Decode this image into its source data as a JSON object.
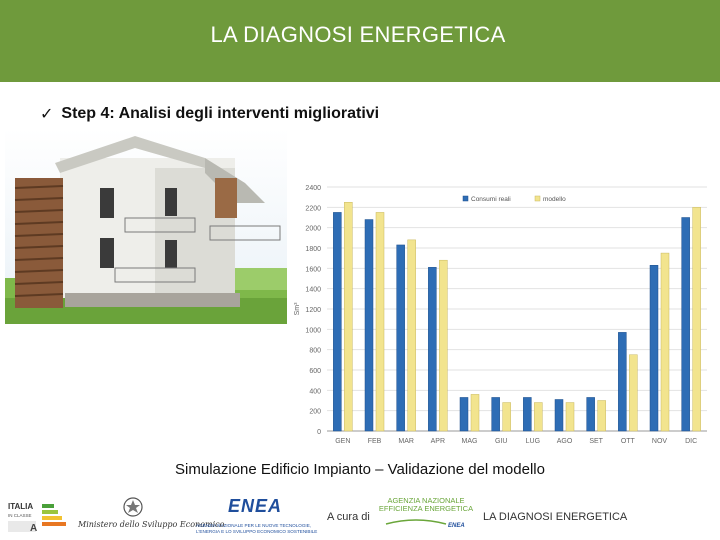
{
  "header": {
    "title": "LA DIAGNOSI ENERGETICA"
  },
  "step": {
    "label": "Step 4: Analisi degli interventi migliorativi"
  },
  "caption": "Simulazione Edificio Impianto – Validazione del modello",
  "footer": {
    "italia_logo": [
      "ITALIA",
      "IN CLASSE",
      "A"
    ],
    "ministero": "Ministero dello Sviluppo Economico",
    "enea": {
      "word": "ENEA",
      "line1": "AGENZIA NAZIONALE PER LE NUOVE TECNOLOGIE,",
      "line2": "L'ENERGIA E LO SVILUPPO ECONOMICO SOSTENIBILE"
    },
    "a_cura_di": "A cura di",
    "agenzia": {
      "line1": "AGENZIA NAZIONALE",
      "line2": "EFFICIENZA ENERGETICA",
      "mark": "ENEA"
    },
    "right": "LA DIAGNOSI ENERGETICA"
  },
  "colors": {
    "header": "#6f9a3c",
    "series_1": "#2e6db5",
    "series_2": "#f2e48e"
  },
  "chart_data": {
    "type": "bar",
    "categories": [
      "GEN",
      "FEB",
      "MAR",
      "APR",
      "MAG",
      "GIU",
      "LUG",
      "AGO",
      "SET",
      "OTT",
      "NOV",
      "DIC"
    ],
    "series": [
      {
        "name": "Consumi reali",
        "values": [
          2150,
          2080,
          1830,
          1610,
          330,
          330,
          330,
          310,
          330,
          970,
          1630,
          2100
        ]
      },
      {
        "name": "modello",
        "values": [
          2250,
          2150,
          1880,
          1680,
          360,
          280,
          280,
          280,
          300,
          750,
          1750,
          2200
        ]
      }
    ],
    "ylabel": "Sm³",
    "ylim": [
      0,
      2400
    ],
    "yticks": [
      0,
      200,
      400,
      600,
      800,
      1000,
      1200,
      1400,
      1600,
      1800,
      2000,
      2200,
      2400
    ],
    "grid": true,
    "legend": "top-right"
  }
}
